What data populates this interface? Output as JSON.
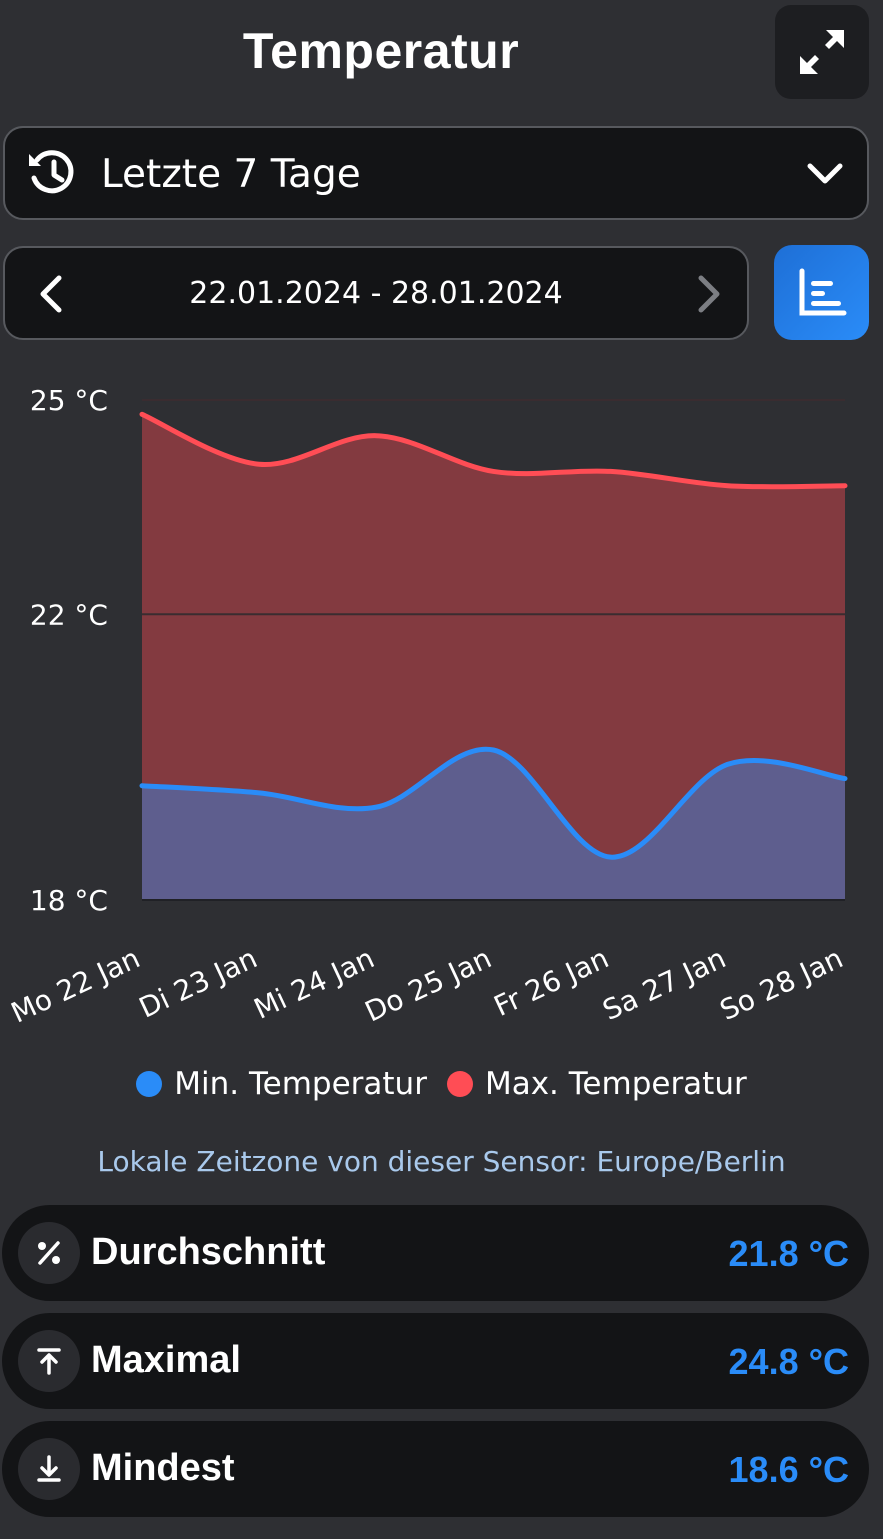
{
  "header": {
    "title": "Temperatur",
    "expand_icon": "expand-icon"
  },
  "range_select": {
    "icon": "history-icon",
    "label": "Letzte 7 Tage",
    "chevron": "chevron-down-icon"
  },
  "date_nav": {
    "range": "22.01.2024 - 28.01.2024"
  },
  "colors": {
    "min": "#2a8cf8",
    "max": "#ff4d55",
    "accent": "#2a8cf8"
  },
  "chart_data": {
    "type": "area",
    "categories": [
      "Mo 22 Jan",
      "Di 23 Jan",
      "Mi 24 Jan",
      "Do 25 Jan",
      "Fr 26 Jan",
      "Sa 27 Jan",
      "So 28 Jan"
    ],
    "series": [
      {
        "name": "Min. Temperatur",
        "values": [
          19.6,
          19.5,
          19.3,
          20.1,
          18.6,
          19.9,
          19.7
        ]
      },
      {
        "name": "Max. Temperatur",
        "values": [
          24.8,
          24.1,
          24.5,
          24.0,
          24.0,
          23.8,
          23.8
        ]
      }
    ],
    "yticks": [
      {
        "value": 25,
        "label": "25 °C"
      },
      {
        "value": 22,
        "label": "22 °C"
      },
      {
        "value": 18,
        "label": "18 °C"
      }
    ],
    "ylim": [
      18,
      25
    ],
    "grid": true,
    "legend": "bottom"
  },
  "timezone_note": "Lokale Zeitzone von dieser Sensor: Europe/Berlin",
  "stats": [
    {
      "icon": "percent-icon",
      "label": "Durchschnitt",
      "value": "21.8 °C"
    },
    {
      "icon": "arrow-up-to-line-icon",
      "label": "Maximal",
      "value": "24.8 °C"
    },
    {
      "icon": "arrow-down-to-line-icon",
      "label": "Mindest",
      "value": "18.6 °C"
    }
  ]
}
